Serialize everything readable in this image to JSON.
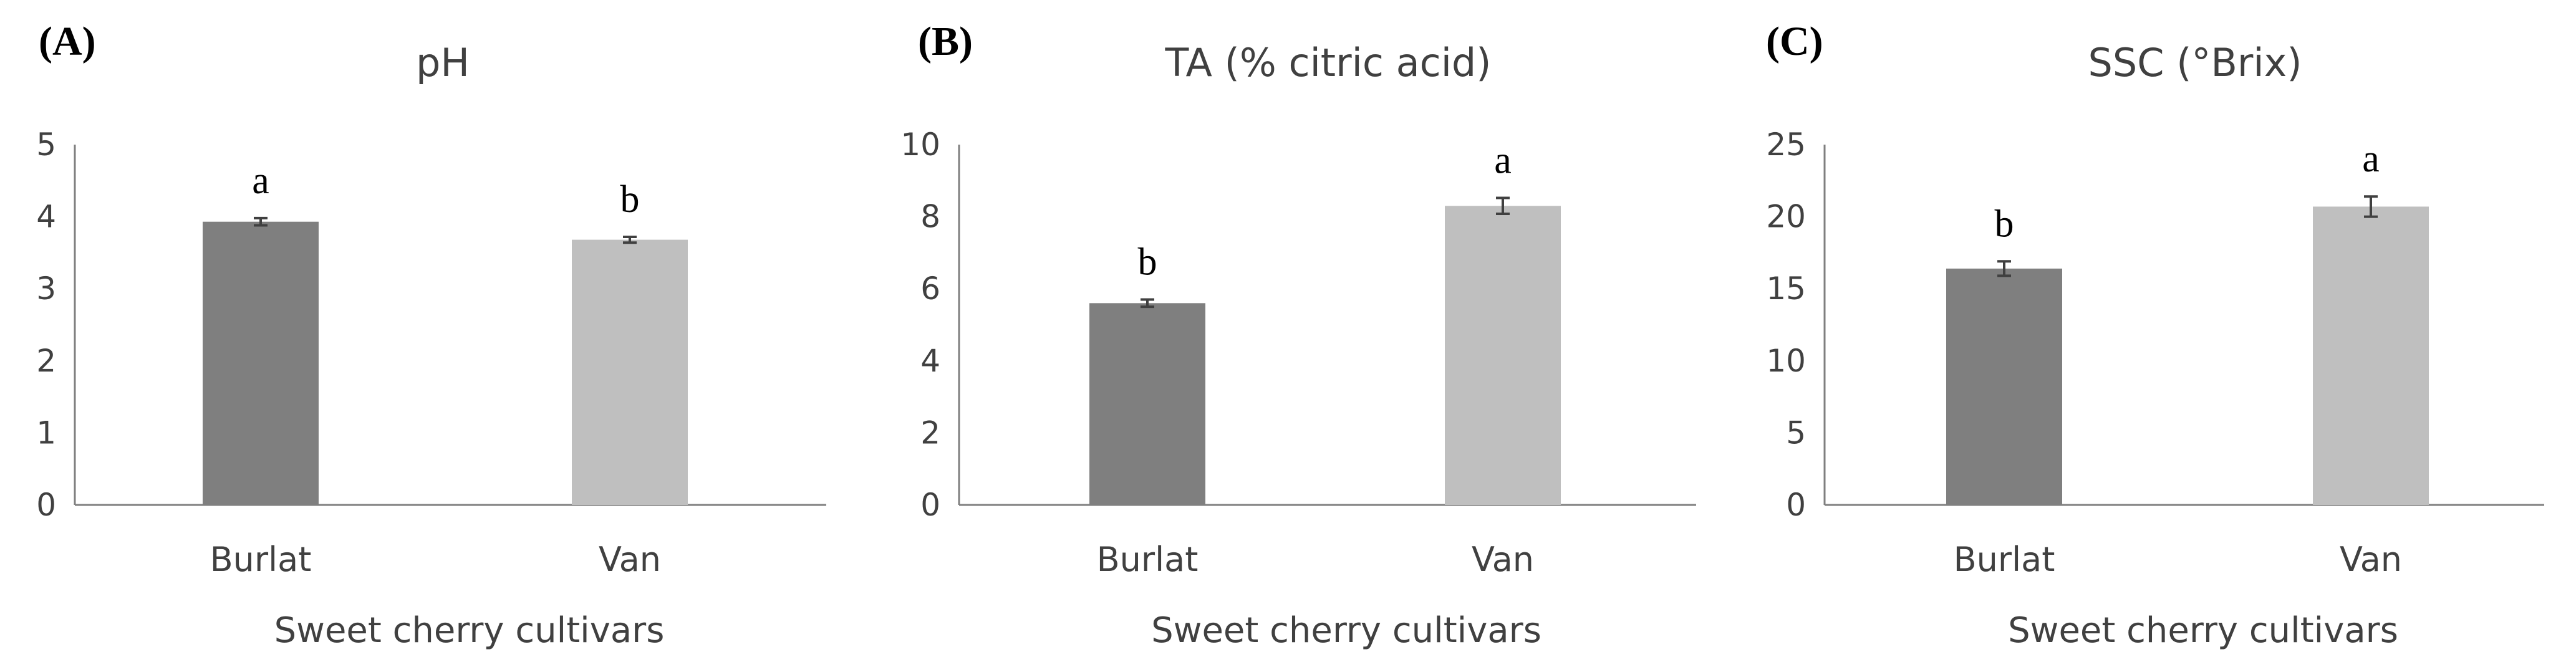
{
  "colors": {
    "Burlat": "#7f7f7f",
    "Van": "#bfbfbf",
    "axis": "#7f7f7f",
    "text": "#404040",
    "errorbar": "#404040"
  },
  "chart_data": [
    {
      "type": "bar",
      "panel": "(A)",
      "title": "pH",
      "xlabel": "Sweet cherry cultivars",
      "ylabel": "",
      "categories": [
        "Burlat",
        "Van"
      ],
      "values": [
        3.93,
        3.68
      ],
      "errors": [
        0.05,
        0.04
      ],
      "significance": [
        "a",
        "b"
      ],
      "ylim": [
        0,
        5
      ],
      "yticks": [
        "0",
        "1",
        "2",
        "3",
        "4",
        "5"
      ],
      "grid": false
    },
    {
      "type": "bar",
      "panel": "(B)",
      "title": "TA (% citric acid)",
      "xlabel": "Sweet cherry cultivars",
      "ylabel": "",
      "categories": [
        "Burlat",
        "Van"
      ],
      "values": [
        5.6,
        8.3
      ],
      "errors": [
        0.1,
        0.22
      ],
      "significance": [
        "b",
        "a"
      ],
      "ylim": [
        0,
        10
      ],
      "yticks": [
        "0",
        "2",
        "4",
        "6",
        "8",
        "10"
      ],
      "grid": false
    },
    {
      "type": "bar",
      "panel": "(C)",
      "title": "SSC (°Brix)",
      "xlabel": "Sweet cherry cultivars",
      "ylabel": "",
      "categories": [
        "Burlat",
        "Van"
      ],
      "values": [
        16.4,
        20.7
      ],
      "errors": [
        0.5,
        0.7
      ],
      "significance": [
        "b",
        "a"
      ],
      "ylim": [
        0,
        25
      ],
      "yticks": [
        "0",
        "5",
        "10",
        "15",
        "20",
        "25"
      ],
      "grid": false
    }
  ]
}
